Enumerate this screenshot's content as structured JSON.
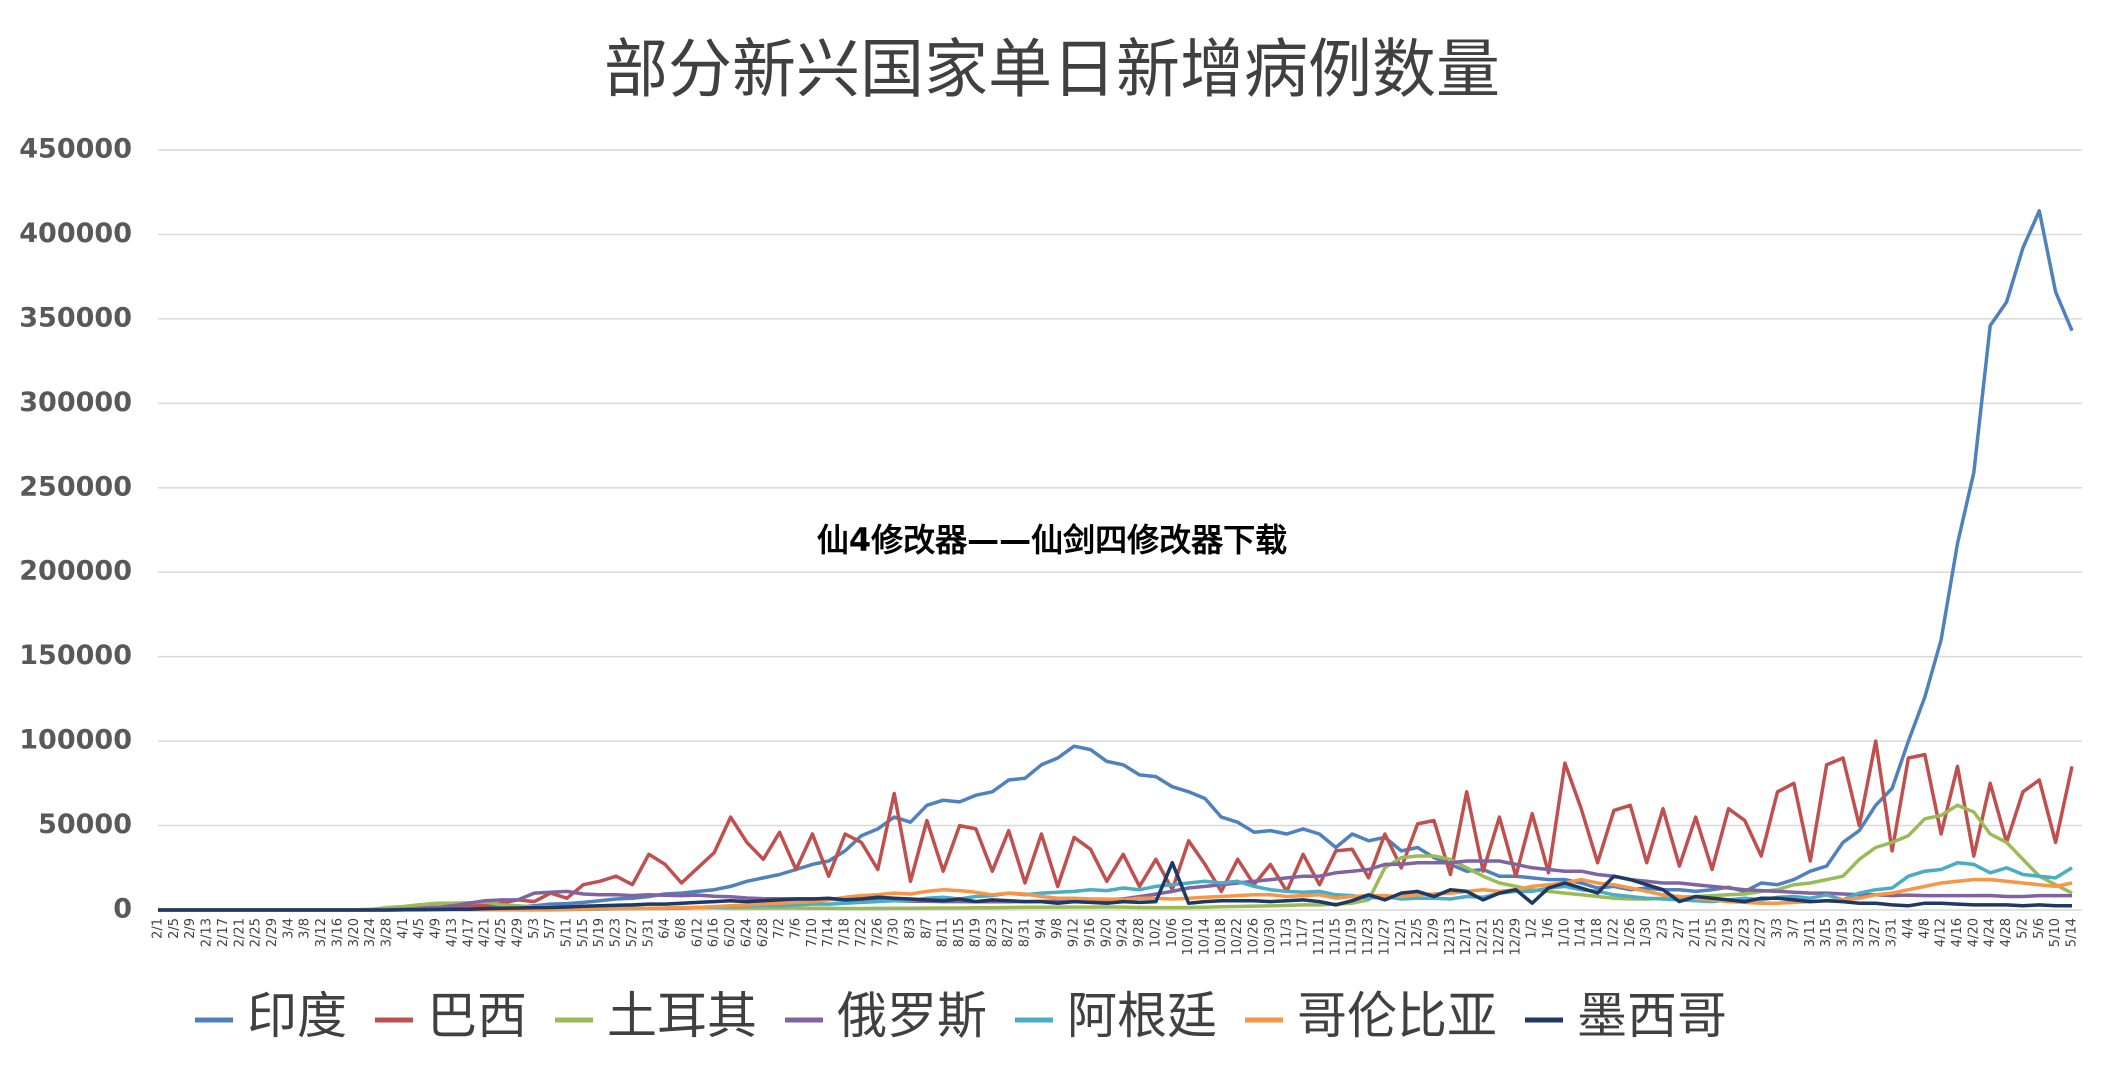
{
  "chart_data": {
    "type": "line",
    "title": "部分新兴国家单日新增病例数量",
    "annotation": "仙4修改器——仙剑四修改器下载",
    "categories": [
      "2/1",
      "2/5",
      "2/9",
      "2/13",
      "2/17",
      "2/21",
      "2/25",
      "2/29",
      "3/4",
      "3/8",
      "3/12",
      "3/16",
      "3/20",
      "3/24",
      "3/28",
      "4/1",
      "4/5",
      "4/9",
      "4/13",
      "4/17",
      "4/21",
      "4/25",
      "4/29",
      "5/3",
      "5/7",
      "5/11",
      "5/15",
      "5/19",
      "5/23",
      "5/27",
      "5/31",
      "6/4",
      "6/8",
      "6/12",
      "6/16",
      "6/20",
      "6/24",
      "6/28",
      "7/2",
      "7/6",
      "7/10",
      "7/14",
      "7/18",
      "7/22",
      "7/26",
      "7/30",
      "8/3",
      "8/7",
      "8/11",
      "8/15",
      "8/19",
      "8/23",
      "8/27",
      "8/31",
      "9/4",
      "9/8",
      "9/12",
      "9/16",
      "9/20",
      "9/24",
      "9/28",
      "10/2",
      "10/6",
      "10/10",
      "10/14",
      "10/18",
      "10/22",
      "10/26",
      "10/30",
      "11/3",
      "11/7",
      "11/11",
      "11/15",
      "11/19",
      "11/23",
      "11/27",
      "12/1",
      "12/5",
      "12/9",
      "12/13",
      "12/17",
      "12/21",
      "12/25",
      "12/29",
      "1/2",
      "1/6",
      "1/10",
      "1/14",
      "1/18",
      "1/22",
      "1/26",
      "1/30",
      "2/3",
      "2/7",
      "2/11",
      "2/15",
      "2/19",
      "2/23",
      "2/27",
      "3/3",
      "3/7",
      "3/11",
      "3/15",
      "3/19",
      "3/23",
      "3/27",
      "3/31",
      "4/4",
      "4/8",
      "4/12",
      "4/16",
      "4/20",
      "4/24",
      "4/28",
      "5/2",
      "5/6",
      "5/10",
      "5/14"
    ],
    "series": [
      {
        "name": "印度",
        "color": "#4f81bd",
        "values": [
          0,
          0,
          0,
          0,
          0,
          0,
          0,
          0,
          0,
          0,
          10,
          20,
          50,
          100,
          150,
          400,
          600,
          800,
          1000,
          1200,
          1500,
          1800,
          1800,
          2500,
          3500,
          3800,
          4500,
          5500,
          6500,
          7000,
          8000,
          9500,
          10000,
          11000,
          12000,
          14000,
          17000,
          19000,
          21000,
          24000,
          27000,
          29000,
          35000,
          44000,
          48000,
          55000,
          52000,
          62000,
          65000,
          64000,
          68000,
          70000,
          77000,
          78000,
          86000,
          90000,
          97000,
          95000,
          88000,
          86000,
          80000,
          79000,
          73000,
          70000,
          66000,
          55000,
          52000,
          46000,
          47000,
          45000,
          48000,
          45000,
          37000,
          45000,
          41000,
          43000,
          35000,
          37000,
          31000,
          27000,
          23000,
          24000,
          20000,
          20000,
          19000,
          18000,
          18000,
          16000,
          13000,
          14000,
          12000,
          13000,
          12000,
          12000,
          11000,
          12000,
          13500,
          11000,
          16000,
          15000,
          18000,
          23000,
          26000,
          40000,
          47000,
          62000,
          72000,
          100000,
          126000,
          160000,
          217000,
          259000,
          346000,
          360000,
          392000,
          414000,
          366000,
          343000
        ]
      },
      {
        "name": "巴西",
        "color": "#c0504d",
        "values": [
          0,
          0,
          0,
          0,
          0,
          0,
          0,
          0,
          0,
          0,
          0,
          0,
          100,
          300,
          500,
          1000,
          1200,
          1800,
          1500,
          3000,
          2500,
          4000,
          6000,
          5000,
          10000,
          7000,
          15000,
          17000,
          20000,
          15000,
          33000,
          27000,
          16000,
          25000,
          34000,
          55000,
          40000,
          30000,
          46000,
          24000,
          45000,
          20000,
          45000,
          40000,
          24000,
          69000,
          17000,
          53000,
          23000,
          50000,
          48000,
          23000,
          47000,
          16000,
          45000,
          14000,
          43000,
          36000,
          17000,
          33000,
          14000,
          30000,
          12000,
          41000,
          27000,
          11000,
          30000,
          15000,
          27000,
          11000,
          33000,
          15000,
          35000,
          36000,
          19000,
          45000,
          25000,
          51000,
          53000,
          21000,
          70000,
          23000,
          55000,
          20000,
          57000,
          22000,
          87000,
          60000,
          28000,
          59000,
          62000,
          28000,
          60000,
          26000,
          55000,
          24000,
          60000,
          53000,
          32000,
          70000,
          75000,
          29000,
          86000,
          90000,
          50000,
          100000,
          35000,
          90000,
          92000,
          45000,
          85000,
          32000,
          75000,
          40000,
          70000,
          77000,
          40000,
          85000
        ]
      },
      {
        "name": "土耳其",
        "color": "#9bbb59",
        "values": [
          0,
          0,
          0,
          0,
          0,
          0,
          0,
          0,
          0,
          0,
          0,
          0,
          50,
          300,
          1500,
          2100,
          3100,
          4000,
          4100,
          4300,
          4700,
          3000,
          2500,
          1800,
          1800,
          1600,
          1300,
          1000,
          1100,
          1000,
          900,
          900,
          1000,
          1500,
          1400,
          1200,
          1200,
          1200,
          1200,
          1200,
          1000,
          1000,
          900,
          900,
          950,
          1000,
          1000,
          1100,
          1200,
          1200,
          1300,
          1300,
          1500,
          1600,
          1600,
          1700,
          1700,
          1700,
          1800,
          1700,
          1500,
          1400,
          1400,
          1500,
          1600,
          1900,
          2100,
          2300,
          2400,
          2700,
          3000,
          3000,
          3500,
          4000,
          6000,
          25000,
          31000,
          32000,
          32000,
          30000,
          25000,
          20000,
          16000,
          14000,
          12000,
          11000,
          10000,
          9000,
          8000,
          7000,
          6500,
          6500,
          7000,
          7500,
          8000,
          8500,
          9000,
          9500,
          11000,
          12000,
          15000,
          16000,
          18000,
          20000,
          30000,
          37000,
          40000,
          44000,
          54000,
          56000,
          62000,
          58000,
          45000,
          40000,
          30000,
          20000,
          15000,
          10000
        ]
      },
      {
        "name": "俄罗斯",
        "color": "#8064a2",
        "values": [
          0,
          0,
          0,
          0,
          0,
          0,
          0,
          0,
          0,
          0,
          0,
          0,
          0,
          0,
          200,
          500,
          900,
          1500,
          2500,
          4000,
          5500,
          6000,
          6000,
          10000,
          10500,
          11000,
          9500,
          9000,
          9000,
          8500,
          9000,
          8700,
          8500,
          8800,
          8200,
          7800,
          7100,
          6700,
          6700,
          6600,
          6600,
          6400,
          6000,
          5800,
          5600,
          5500,
          5200,
          5200,
          5000,
          5000,
          4900,
          4900,
          4900,
          5000,
          5100,
          5200,
          5400,
          5700,
          6100,
          6500,
          8000,
          9400,
          11000,
          13000,
          14000,
          15000,
          16000,
          17000,
          18000,
          19000,
          20000,
          20000,
          22000,
          23000,
          24000,
          27000,
          27000,
          28000,
          28000,
          28000,
          29000,
          29000,
          29000,
          27000,
          25000,
          24000,
          23000,
          23000,
          21000,
          20000,
          18000,
          17000,
          16000,
          16000,
          15000,
          14000,
          13000,
          12000,
          11500,
          11000,
          10500,
          10000,
          10000,
          9500,
          9000,
          9000,
          8500,
          8800,
          8500,
          8500,
          8500,
          8500,
          8600,
          8000,
          8000,
          8500,
          8500,
          8500
        ]
      },
      {
        "name": "阿根廷",
        "color": "#4bacc6",
        "values": [
          0,
          0,
          0,
          0,
          0,
          0,
          0,
          0,
          0,
          0,
          0,
          0,
          0,
          0,
          0,
          100,
          100,
          100,
          100,
          100,
          150,
          150,
          150,
          150,
          200,
          300,
          400,
          500,
          700,
          800,
          1000,
          1000,
          1200,
          1500,
          1800,
          2000,
          2500,
          2800,
          2500,
          3000,
          3500,
          3500,
          4000,
          4500,
          5000,
          5500,
          5500,
          7000,
          7500,
          6500,
          8000,
          8500,
          10000,
          9000,
          10000,
          10500,
          11000,
          12000,
          11500,
          13000,
          12000,
          14000,
          15000,
          16000,
          17000,
          16000,
          17000,
          14000,
          12000,
          11000,
          10500,
          11000,
          9000,
          8500,
          7000,
          8000,
          6500,
          7000,
          7000,
          6500,
          8000,
          7500,
          10000,
          11000,
          11000,
          13000,
          14000,
          12000,
          11000,
          9000,
          8000,
          7000,
          6500,
          6000,
          5500,
          5000,
          6000,
          7000,
          6000,
          7500,
          8000,
          7000,
          9000,
          6000,
          10000,
          12000,
          13000,
          20000,
          23000,
          24000,
          28000,
          27000,
          22000,
          25000,
          21000,
          20000,
          19000,
          25000
        ]
      },
      {
        "name": "哥伦比亚",
        "color": "#f79646",
        "values": [
          0,
          0,
          0,
          0,
          0,
          0,
          0,
          0,
          0,
          0,
          0,
          0,
          0,
          0,
          0,
          50,
          100,
          100,
          150,
          200,
          250,
          300,
          300,
          400,
          400,
          500,
          600,
          700,
          800,
          900,
          1000,
          1200,
          1500,
          1500,
          2000,
          2500,
          3000,
          3500,
          4000,
          4500,
          5000,
          6000,
          7500,
          8500,
          9000,
          10000,
          9500,
          11000,
          12000,
          11500,
          10500,
          9000,
          10000,
          9500,
          8000,
          7000,
          7000,
          6500,
          6500,
          6000,
          7000,
          7000,
          6500,
          7000,
          7500,
          8000,
          8500,
          9000,
          9000,
          8000,
          8500,
          9000,
          7000,
          8000,
          8500,
          8500,
          8000,
          9000,
          9500,
          10000,
          11000,
          12000,
          11000,
          12000,
          14000,
          15000,
          16000,
          18000,
          16000,
          15000,
          13000,
          11000,
          9000,
          8000,
          7000,
          6000,
          5000,
          4500,
          4000,
          4000,
          4500,
          5000,
          5500,
          6000,
          7000,
          9000,
          10000,
          12000,
          14000,
          16000,
          17000,
          18000,
          18000,
          17000,
          16000,
          15000,
          14000,
          16000
        ]
      },
      {
        "name": "墨西哥",
        "color": "#1f3864",
        "values": [
          0,
          0,
          0,
          0,
          0,
          0,
          0,
          0,
          0,
          0,
          0,
          0,
          0,
          0,
          0,
          100,
          200,
          300,
          400,
          500,
          800,
          1000,
          1200,
          1400,
          1500,
          1800,
          2200,
          2500,
          2800,
          3000,
          3500,
          3500,
          4000,
          4500,
          5000,
          5500,
          5000,
          5500,
          6000,
          6500,
          6500,
          7000,
          6000,
          6500,
          7500,
          7000,
          6500,
          6000,
          5500,
          6500,
          5000,
          6000,
          5500,
          5000,
          5000,
          4000,
          5000,
          4500,
          4000,
          5000,
          4500,
          5000,
          28000,
          4000,
          5000,
          5500,
          5500,
          5500,
          5000,
          5500,
          6000,
          5000,
          3000,
          5500,
          9000,
          6000,
          10000,
          11000,
          8000,
          12000,
          11000,
          6000,
          10000,
          12000,
          4000,
          13000,
          16000,
          13000,
          10000,
          20000,
          18000,
          15000,
          12000,
          5000,
          8000,
          7000,
          6000,
          5000,
          7000,
          7000,
          6000,
          5000,
          5500,
          5000,
          4000,
          4000,
          3000,
          2500,
          4000,
          4000,
          3500,
          3000,
          3000,
          3000,
          2500,
          3000,
          2500,
          2500
        ]
      }
    ],
    "ylim": [
      0,
      450000
    ],
    "yticks": [
      0,
      50000,
      100000,
      150000,
      200000,
      250000,
      300000,
      350000,
      400000,
      450000
    ],
    "grid": true,
    "legend": "bottom"
  }
}
